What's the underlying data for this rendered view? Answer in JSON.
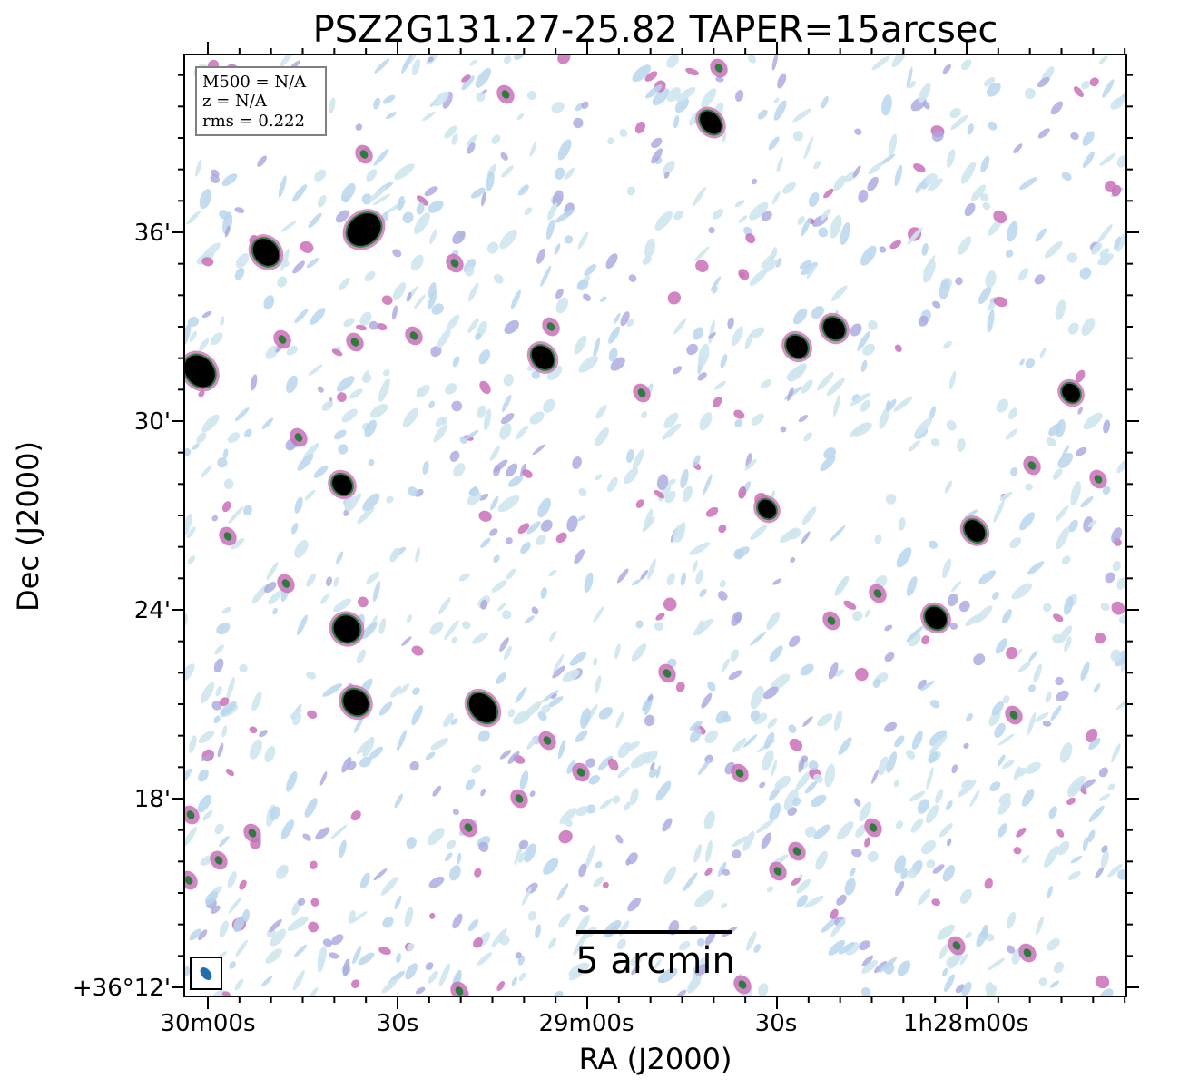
{
  "chart_data": {
    "type": "heatmap",
    "title": "PSZ2G131.27-25.82 TAPER=15arcsec",
    "xlabel": "RA (J2000)",
    "ylabel": "Dec (J2000)",
    "x_ticks": [
      "30m00s",
      "30s",
      "29m00s",
      "30s",
      "1h28m00s"
    ],
    "y_ticks": [
      "+36°12'",
      "18'",
      "24'",
      "30'",
      "36'"
    ],
    "y_tick_arcmin": [
      12,
      18,
      24,
      30,
      36
    ],
    "info": {
      "mass": "M500 = N/A",
      "redshift": "z = N/A",
      "rms": "rms = 0.222"
    },
    "scale_bar": {
      "label": "5 arcmin",
      "length_arcmin": 5
    },
    "colors": {
      "noise_light": "#cfe6ee",
      "noise_blue": "#b9d6ec",
      "noise_lavender": "#a9a6df",
      "noise_pink": "#c971b8",
      "source_green": "#2f7a3e",
      "source_core": "#000000",
      "beam": "#1f6fb0"
    }
  }
}
